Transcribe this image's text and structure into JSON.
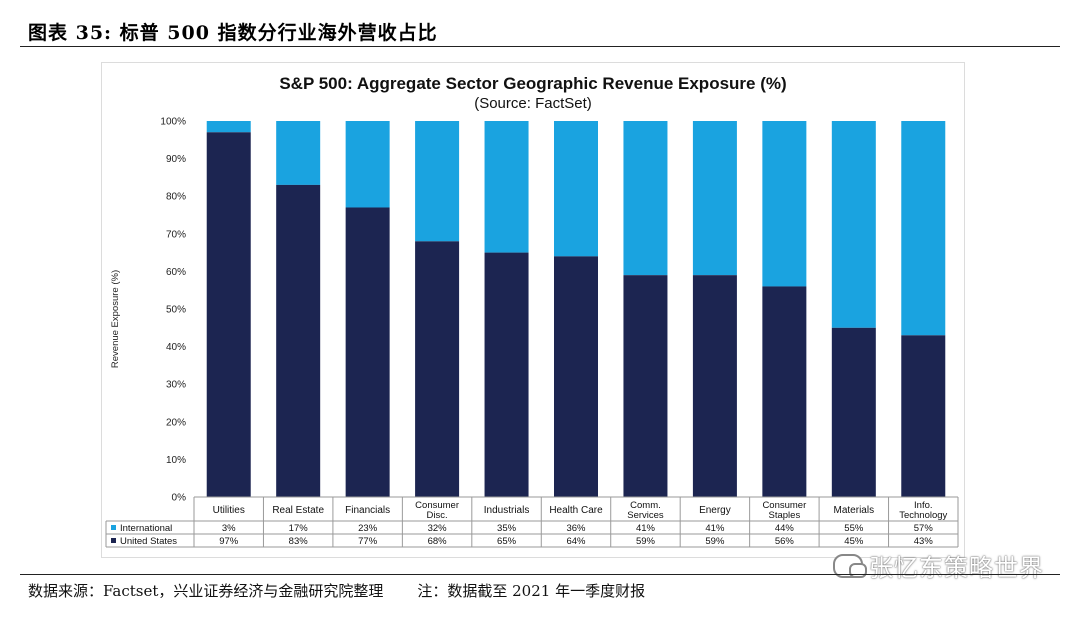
{
  "figure": {
    "title": "图表 35:  标普 500 指数分行业海外营收占比",
    "source": "数据来源：Factset，兴业证券经济与金融研究院整理",
    "note": "注：数据截至 2021 年一季度财报",
    "watermark": "张忆东策略世界"
  },
  "colors": {
    "international": "#1aa3e0",
    "united_states": "#1c2551"
  },
  "chart_data": {
    "type": "bar",
    "stacked": true,
    "title": "S&P 500: Aggregate Sector Geographic Revenue Exposure (%)",
    "subtitle": "(Source: FactSet)",
    "ylabel": "Revenue Exposure (%)",
    "xlabel": "",
    "ylim": [
      0,
      100
    ],
    "yticks": [
      "0%",
      "10%",
      "20%",
      "30%",
      "40%",
      "50%",
      "60%",
      "70%",
      "80%",
      "90%",
      "100%"
    ],
    "categories": [
      [
        "Utilities"
      ],
      [
        "Real Estate"
      ],
      [
        "Financials"
      ],
      [
        "Consumer",
        "Disc."
      ],
      [
        "Industrials"
      ],
      [
        "Health Care"
      ],
      [
        "Comm.",
        "Services"
      ],
      [
        "Energy"
      ],
      [
        "Consumer",
        "Staples"
      ],
      [
        "Materials"
      ],
      [
        "Info.",
        "Technology"
      ]
    ],
    "series": [
      {
        "name": "United States",
        "values": [
          97,
          83,
          77,
          68,
          65,
          64,
          59,
          59,
          56,
          45,
          43
        ],
        "labels": [
          "97%",
          "83%",
          "77%",
          "68%",
          "65%",
          "64%",
          "59%",
          "59%",
          "56%",
          "45%",
          "43%"
        ]
      },
      {
        "name": "International",
        "values": [
          3,
          17,
          23,
          32,
          35,
          36,
          41,
          41,
          44,
          55,
          57
        ],
        "labels": [
          "3%",
          "17%",
          "23%",
          "32%",
          "35%",
          "36%",
          "41%",
          "41%",
          "44%",
          "55%",
          "57%"
        ]
      }
    ],
    "legend": "data-table-left"
  }
}
